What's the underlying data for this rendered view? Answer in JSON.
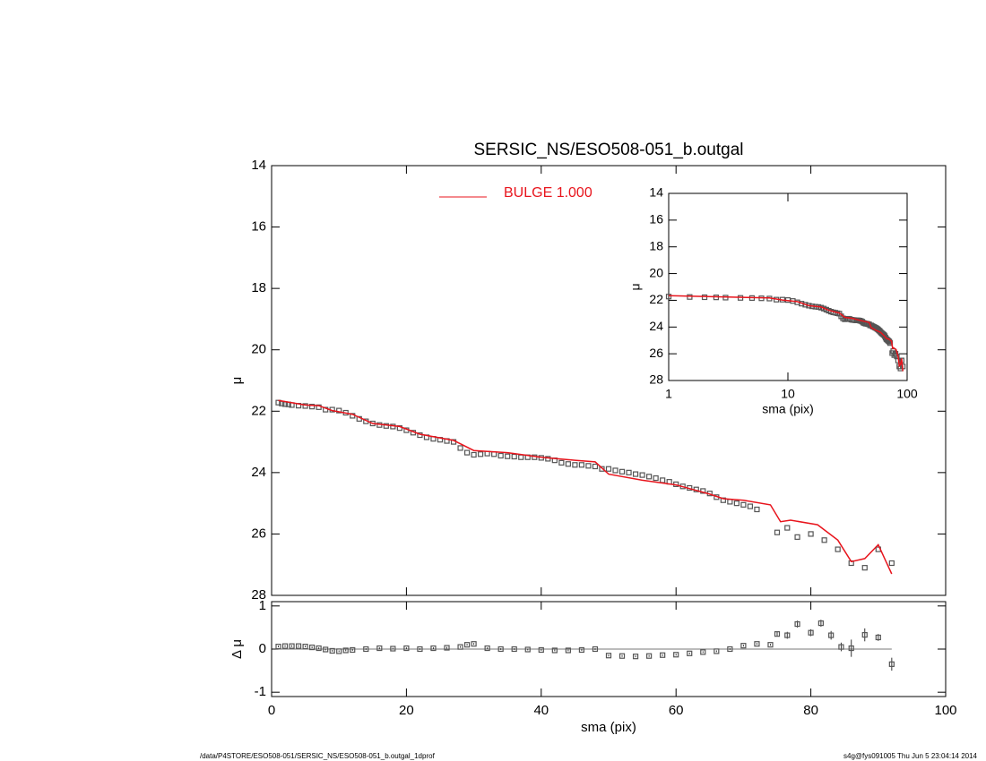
{
  "chart_data": [
    {
      "type": "scatter",
      "title": "SERSIC_NS/ESO508-051_b.outgal",
      "ylabel": "μ",
      "xlim": [
        0,
        100
      ],
      "xticks": [
        0,
        20,
        40,
        60,
        80,
        100
      ],
      "ylim": [
        14,
        28
      ],
      "y_inverted": true,
      "yticks": [
        14,
        16,
        18,
        20,
        22,
        24,
        26,
        28
      ],
      "points": {
        "color": "#555555",
        "x": [
          1,
          1.5,
          2,
          2.5,
          3,
          4,
          5,
          6,
          7,
          8,
          9,
          10,
          11,
          12,
          13,
          14,
          15,
          16,
          17,
          18,
          19,
          20,
          21,
          22,
          23,
          24,
          25,
          26,
          27,
          28,
          29,
          30,
          31,
          32,
          33,
          34,
          35,
          36,
          37,
          38,
          39,
          40,
          41,
          42,
          43,
          44,
          45,
          46,
          47,
          48,
          49,
          50,
          51,
          52,
          53,
          54,
          55,
          56,
          57,
          58,
          59,
          60,
          61,
          62,
          63,
          64,
          65,
          66,
          67,
          68,
          69,
          70,
          71,
          72,
          75,
          76.5,
          78,
          80,
          82,
          84,
          86,
          88,
          90,
          92
        ],
        "values": [
          21.72,
          21.75,
          21.77,
          21.78,
          21.8,
          21.82,
          21.83,
          21.85,
          21.87,
          21.95,
          21.95,
          21.98,
          22.05,
          22.15,
          22.25,
          22.33,
          22.4,
          22.45,
          22.48,
          22.5,
          22.55,
          22.62,
          22.7,
          22.78,
          22.85,
          22.9,
          22.93,
          22.97,
          23.0,
          23.2,
          23.35,
          23.42,
          23.4,
          23.38,
          23.4,
          23.45,
          23.47,
          23.48,
          23.5,
          23.5,
          23.5,
          23.52,
          23.55,
          23.6,
          23.68,
          23.72,
          23.75,
          23.75,
          23.78,
          23.8,
          23.88,
          23.88,
          23.93,
          23.97,
          24.0,
          24.05,
          24.08,
          24.13,
          24.18,
          24.25,
          24.3,
          24.38,
          24.45,
          24.5,
          24.55,
          24.6,
          24.68,
          24.8,
          24.9,
          24.95,
          25.0,
          25.05,
          25.1,
          25.2,
          25.95,
          25.8,
          26.1,
          26.0,
          26.2,
          26.5,
          26.95,
          27.1,
          26.5,
          26.95
        ]
      },
      "series": [
        {
          "name": "BULGE  1.000",
          "color": "#e8141c",
          "x": [
            1,
            5,
            7,
            9,
            12,
            15,
            19,
            22,
            27,
            30,
            35,
            40,
            45,
            48,
            50,
            55,
            60,
            65,
            67,
            70,
            74,
            75.5,
            77,
            81,
            84,
            86,
            88,
            90,
            92
          ],
          "values": [
            21.65,
            21.8,
            21.82,
            21.98,
            22.1,
            22.4,
            22.5,
            22.75,
            22.95,
            23.28,
            23.35,
            23.5,
            23.6,
            23.65,
            24.05,
            24.25,
            24.4,
            24.7,
            24.85,
            24.9,
            25.05,
            25.6,
            25.55,
            25.7,
            26.2,
            26.9,
            26.8,
            26.35,
            27.3
          ]
        }
      ]
    },
    {
      "type": "errorbar",
      "ylabel": "Δ μ",
      "xlabel": "sma (pix)",
      "xlim": [
        0,
        100
      ],
      "xticks": [
        0,
        20,
        40,
        60,
        80,
        100
      ],
      "ylim": [
        -1.1,
        1.1
      ],
      "yticks": [
        -1,
        0,
        1
      ],
      "zero_line": true,
      "color": "#555555",
      "x": [
        1,
        2,
        3,
        4,
        5,
        6,
        7,
        8,
        9,
        10,
        11,
        12,
        14,
        16,
        18,
        20,
        22,
        24,
        26,
        28,
        29,
        30,
        32,
        34,
        36,
        38,
        40,
        42,
        44,
        46,
        48,
        50,
        52,
        54,
        56,
        58,
        60,
        62,
        64,
        66,
        68,
        70,
        72,
        74,
        75,
        76.5,
        78,
        80,
        81.5,
        83,
        84.5,
        86,
        88,
        90,
        92
      ],
      "values": [
        0.06,
        0.07,
        0.07,
        0.07,
        0.06,
        0.04,
        0.02,
        -0.01,
        -0.04,
        -0.05,
        -0.03,
        -0.02,
        0.0,
        0.02,
        0.01,
        0.02,
        0.0,
        0.02,
        0.03,
        0.05,
        0.1,
        0.12,
        0.02,
        0.0,
        0.0,
        -0.01,
        -0.02,
        -0.03,
        -0.03,
        -0.02,
        0.0,
        -0.15,
        -0.16,
        -0.17,
        -0.16,
        -0.14,
        -0.13,
        -0.1,
        -0.07,
        -0.05,
        0.0,
        0.08,
        0.12,
        0.1,
        0.35,
        0.32,
        0.58,
        0.38,
        0.6,
        0.32,
        0.05,
        0.02,
        0.33,
        0.27,
        -0.35
      ],
      "errors": [
        0.02,
        0.02,
        0.02,
        0.02,
        0.02,
        0.02,
        0.02,
        0.02,
        0.02,
        0.02,
        0.02,
        0.02,
        0.02,
        0.02,
        0.02,
        0.02,
        0.02,
        0.02,
        0.02,
        0.02,
        0.02,
        0.02,
        0.02,
        0.02,
        0.02,
        0.02,
        0.02,
        0.02,
        0.02,
        0.02,
        0.02,
        0.02,
        0.02,
        0.02,
        0.02,
        0.02,
        0.02,
        0.02,
        0.02,
        0.02,
        0.02,
        0.02,
        0.02,
        0.02,
        0.05,
        0.08,
        0.08,
        0.08,
        0.08,
        0.1,
        0.1,
        0.2,
        0.15,
        0.08,
        0.15
      ]
    },
    {
      "type": "scatter",
      "ylabel": "μ",
      "xlabel": "sma (pix)",
      "log_x": true,
      "xlim": [
        1,
        100
      ],
      "xticks": [
        1,
        10,
        100
      ],
      "ylim": [
        14,
        28
      ],
      "y_inverted": true,
      "yticks": [
        14,
        16,
        18,
        20,
        22,
        24,
        26,
        28
      ]
    }
  ],
  "footer": {
    "left": "/data/P4STORE/ESO508-051/SERSIC_NS/ESO508-051_b.outgal_1dprof",
    "right": "s4g@fys091005  Thu Jun  5 23:04:14 2014"
  }
}
